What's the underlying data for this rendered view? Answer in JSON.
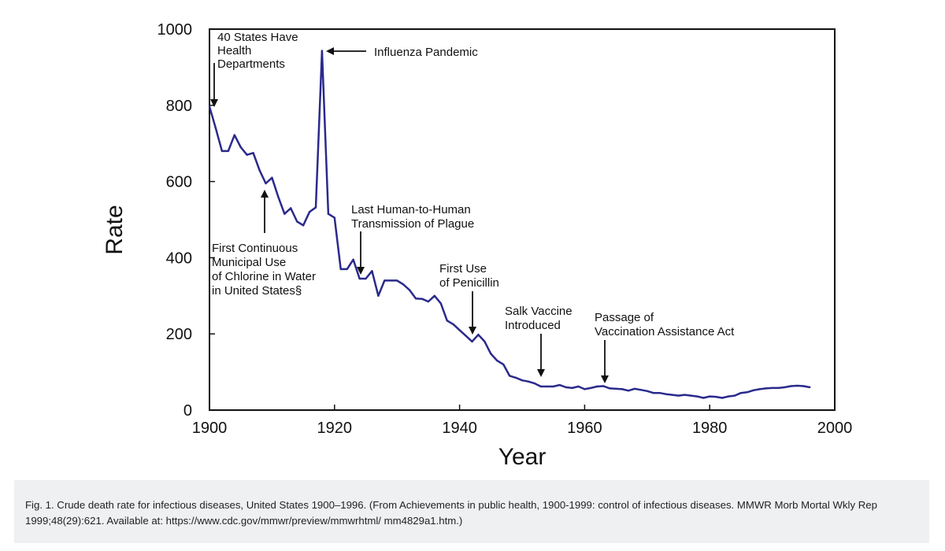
{
  "chart_data": {
    "type": "line",
    "title": "",
    "xlabel": "Year",
    "ylabel": "Rate",
    "xlim": [
      1900,
      2000
    ],
    "ylim": [
      0,
      1000
    ],
    "xticks": [
      1900,
      1920,
      1940,
      1960,
      1980,
      2000
    ],
    "yticks": [
      0,
      200,
      400,
      600,
      800,
      1000
    ],
    "line_color": "#2a2a8c",
    "series": [
      {
        "name": "Crude death rate for infectious diseases",
        "x": [
          1900,
          1901,
          1902,
          1903,
          1904,
          1905,
          1906,
          1907,
          1908,
          1909,
          1910,
          1911,
          1912,
          1913,
          1914,
          1915,
          1916,
          1917,
          1918,
          1919,
          1920,
          1921,
          1922,
          1923,
          1924,
          1925,
          1926,
          1927,
          1928,
          1929,
          1930,
          1931,
          1932,
          1933,
          1934,
          1935,
          1936,
          1937,
          1938,
          1939,
          1940,
          1941,
          1942,
          1943,
          1944,
          1945,
          1946,
          1947,
          1948,
          1949,
          1950,
          1951,
          1952,
          1953,
          1954,
          1955,
          1956,
          1957,
          1958,
          1959,
          1960,
          1961,
          1962,
          1963,
          1964,
          1965,
          1966,
          1967,
          1968,
          1969,
          1970,
          1971,
          1972,
          1973,
          1974,
          1975,
          1976,
          1977,
          1978,
          1979,
          1980,
          1981,
          1982,
          1983,
          1984,
          1985,
          1986,
          1987,
          1988,
          1989,
          1990,
          1991,
          1992,
          1993,
          1994,
          1995,
          1996
        ],
        "values": [
          797,
          740,
          680,
          680,
          722,
          690,
          670,
          675,
          630,
          595,
          610,
          560,
          515,
          530,
          495,
          485,
          520,
          532,
          943,
          515,
          505,
          370,
          370,
          395,
          345,
          345,
          365,
          300,
          340,
          340,
          340,
          330,
          315,
          293,
          292,
          285,
          300,
          280,
          235,
          225,
          210,
          195,
          180,
          198,
          180,
          148,
          130,
          120,
          90,
          85,
          78,
          75,
          70,
          62,
          62,
          62,
          66,
          60,
          58,
          62,
          55,
          58,
          62,
          63,
          57,
          56,
          55,
          51,
          56,
          53,
          50,
          45,
          45,
          42,
          40,
          38,
          40,
          38,
          36,
          32,
          36,
          35,
          32,
          36,
          38,
          45,
          47,
          52,
          55,
          57,
          58,
          58,
          60,
          63,
          64,
          63,
          60
        ]
      }
    ],
    "annotations": [
      {
        "lines": [
          "40 States Have",
          "Health",
          "Departments"
        ],
        "year": 1900.5,
        "arrow": "down"
      },
      {
        "lines": [
          "Influenza Pandemic"
        ],
        "year": 1918,
        "arrow": "left"
      },
      {
        "lines": [
          "First Continuous",
          "Municipal Use",
          "of Chlorine in Water",
          "in United States§"
        ],
        "year": 1908.7,
        "arrow": "up"
      },
      {
        "lines": [
          "Last Human-to-Human",
          "Transmission of Plague"
        ],
        "year": 1924.5,
        "arrow": "down"
      },
      {
        "lines": [
          "First Use",
          "of Penicillin"
        ],
        "year": 1942,
        "arrow": "down"
      },
      {
        "lines": [
          "Salk Vaccine",
          "Introduced"
        ],
        "year": 1953.3,
        "arrow": "down"
      },
      {
        "lines": [
          "Passage of",
          "Vaccination Assistance Act"
        ],
        "year": 1963.5,
        "arrow": "down"
      }
    ]
  },
  "caption": "Fig. 1. Crude death rate for infectious diseases, United States 1900–1996. (From Achievements in public health, 1900-1999: control of infectious diseases. MMWR Morb Mortal Wkly Rep 1999;48(29):621. Available at: https://www.cdc.gov/mmwr/preview/mmwrhtml/ mm4829a1.htm.)"
}
